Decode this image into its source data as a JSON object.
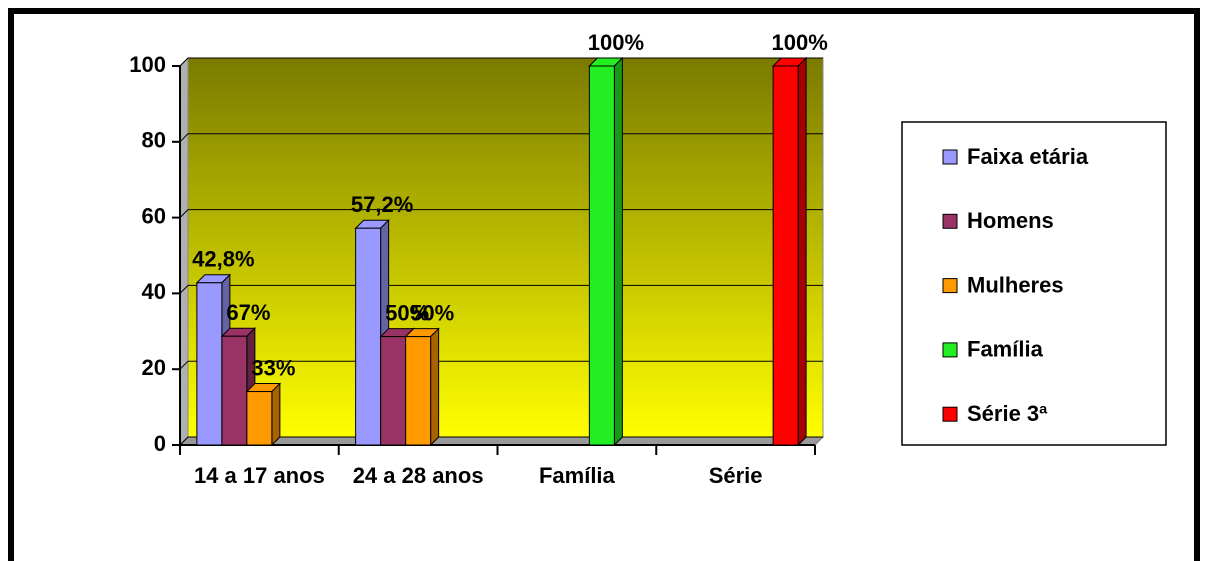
{
  "chart_data": {
    "type": "bar3d",
    "categories": [
      "14 a 17 anos",
      "24 a 28 anos",
      "Família",
      "Série"
    ],
    "series": [
      {
        "name": "Faixa etária",
        "color": "#9999ff",
        "values": [
          42.8,
          57.2,
          null,
          null
        ],
        "labels": [
          "42,8%",
          "57,2%",
          null,
          null
        ]
      },
      {
        "name": "Homens",
        "color": "#993366",
        "values": [
          28.7,
          28.6,
          null,
          null
        ],
        "labels": [
          "67%",
          "50%",
          null,
          null
        ]
      },
      {
        "name": "Mulheres",
        "color": "#ff9900",
        "values": [
          14.1,
          28.6,
          null,
          null
        ],
        "labels": [
          "33%",
          "50%",
          null,
          null
        ]
      },
      {
        "name": "Família",
        "color": "#22ee22",
        "values": [
          null,
          null,
          100,
          null
        ],
        "labels": [
          null,
          null,
          "100%",
          null
        ]
      },
      {
        "name": "Série 3ª",
        "color": "#ff0000",
        "values": [
          null,
          null,
          null,
          100
        ],
        "labels": [
          null,
          null,
          null,
          "100%"
        ]
      }
    ],
    "ylim": [
      0,
      100
    ],
    "yticks": [
      0,
      20,
      40,
      60,
      80,
      100
    ],
    "grid": true,
    "legend": "right"
  }
}
